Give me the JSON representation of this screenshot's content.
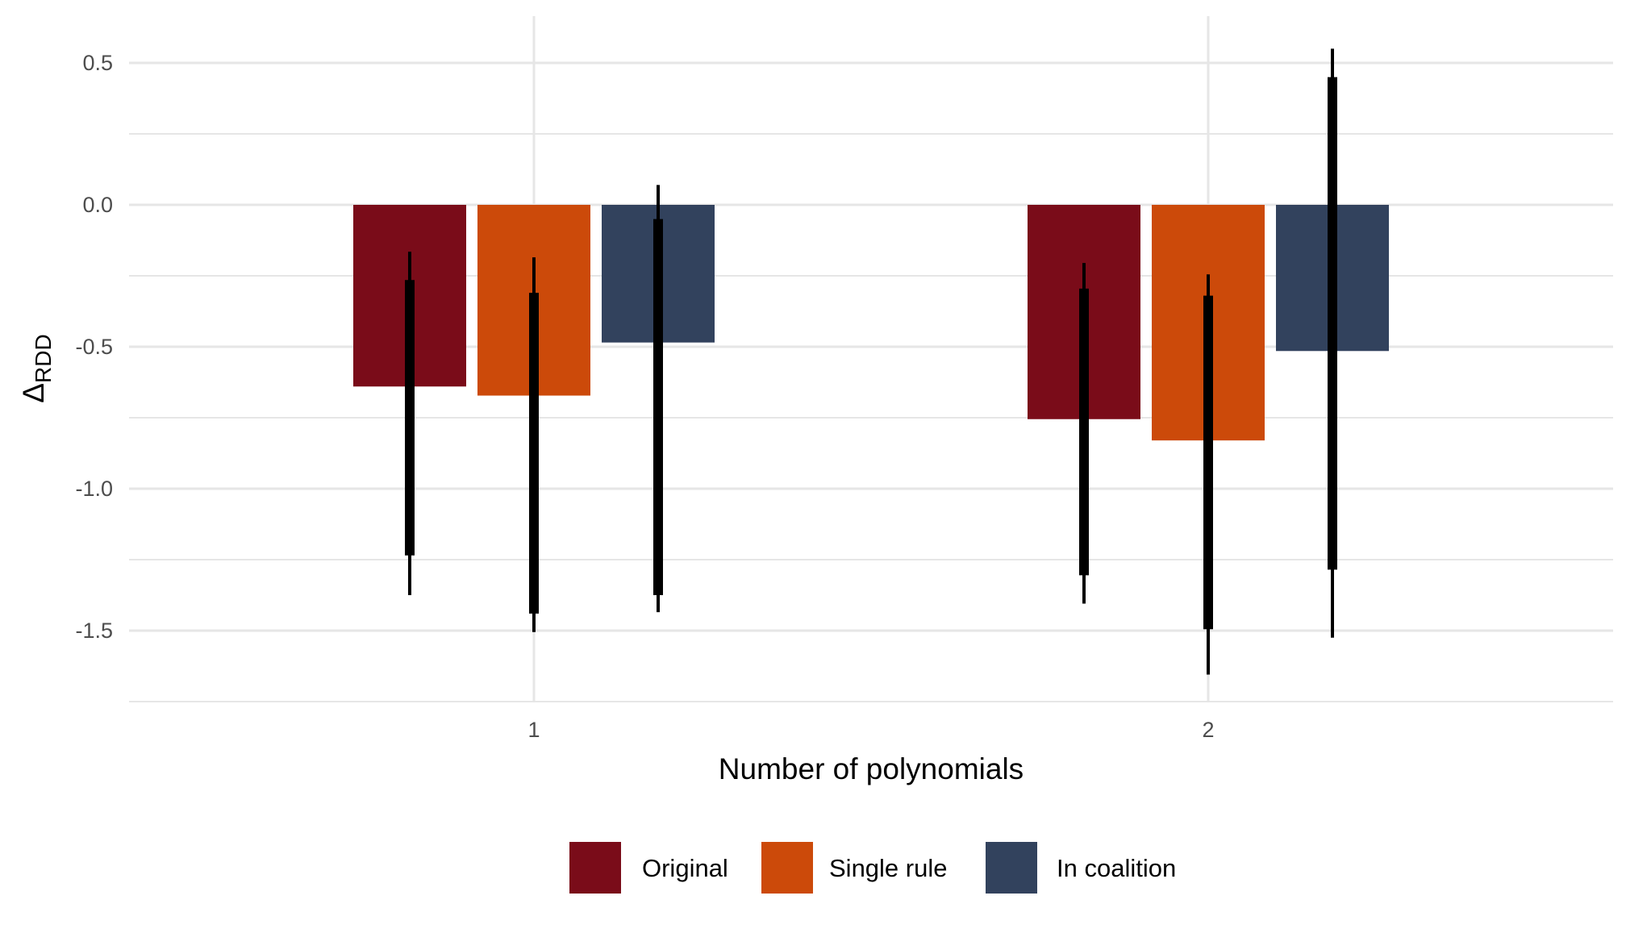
{
  "chart_data": {
    "type": "bar",
    "categories": [
      "1",
      "2"
    ],
    "xlabel": "Number of polynomials",
    "ylabel": {
      "main": "Δ",
      "sub": "RDD"
    },
    "ylim": [
      -1.75,
      0.6
    ],
    "yticks": [
      0.5,
      0.0,
      -0.5,
      -1.0,
      -1.5
    ],
    "ytick_labels": [
      "0.5",
      "0.0",
      "-0.5",
      "-1.0",
      "-1.5"
    ],
    "grid": true,
    "legend_position": "bottom",
    "series": [
      {
        "name": "Original",
        "color": "#7a0c19",
        "values": [
          -0.64,
          -0.755
        ],
        "ci_inner": [
          [
            -1.235,
            -0.265
          ],
          [
            -1.305,
            -0.295
          ]
        ],
        "ci_outer": [
          [
            -1.375,
            -0.165
          ],
          [
            -1.405,
            -0.205
          ]
        ]
      },
      {
        "name": "Single rule",
        "color": "#cc4a0a",
        "values": [
          -0.672,
          -0.83
        ],
        "ci_inner": [
          [
            -1.44,
            -0.31
          ],
          [
            -1.495,
            -0.32
          ]
        ],
        "ci_outer": [
          [
            -1.505,
            -0.185
          ],
          [
            -1.655,
            -0.245
          ]
        ]
      },
      {
        "name": "In coalition",
        "color": "#32425d",
        "values": [
          -0.485,
          -0.515
        ],
        "ci_inner": [
          [
            -1.375,
            -0.05
          ],
          [
            -1.285,
            0.45
          ]
        ],
        "ci_outer": [
          [
            -1.435,
            0.07
          ],
          [
            -1.525,
            0.55
          ]
        ]
      }
    ]
  }
}
